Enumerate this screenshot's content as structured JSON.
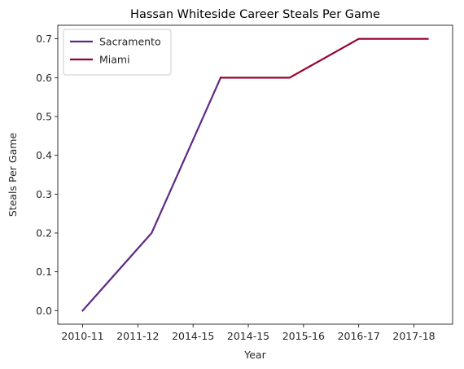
{
  "chart_data": {
    "type": "line",
    "title": "Hassan Whiteside Career Steals Per Game",
    "xlabel": "Year",
    "ylabel": "Steals Per Game",
    "categories": [
      "2010-11",
      "2011-12",
      "2014-15",
      "2014-15",
      "2015-16",
      "2016-17",
      "2017-18"
    ],
    "x_ticks": [
      "2010-11",
      "2011-12",
      "2014-15",
      "2014-15",
      "2015-16",
      "2016-17",
      "2017-18"
    ],
    "ylim": [
      -0.035,
      0.735
    ],
    "y_ticks": [
      0.0,
      0.1,
      0.2,
      0.3,
      0.4,
      0.5,
      0.6,
      0.7
    ],
    "y_tick_labels": [
      "0.0",
      "0.1",
      "0.2",
      "0.3",
      "0.4",
      "0.5",
      "0.6",
      "0.7"
    ],
    "grid": false,
    "legend_position": "top-left",
    "series": [
      {
        "name": "Sacramento",
        "color": "#5e2a84",
        "points": [
          {
            "x": 0,
            "y": 0.0
          },
          {
            "x": 1.25,
            "y": 0.2
          },
          {
            "x": 2.5,
            "y": 0.6
          }
        ]
      },
      {
        "name": "Miami",
        "color": "#98002e",
        "points": [
          {
            "x": 2.5,
            "y": 0.6
          },
          {
            "x": 3.75,
            "y": 0.6
          },
          {
            "x": 5,
            "y": 0.7
          },
          {
            "x": 6.25,
            "y": 0.7
          }
        ]
      }
    ]
  }
}
